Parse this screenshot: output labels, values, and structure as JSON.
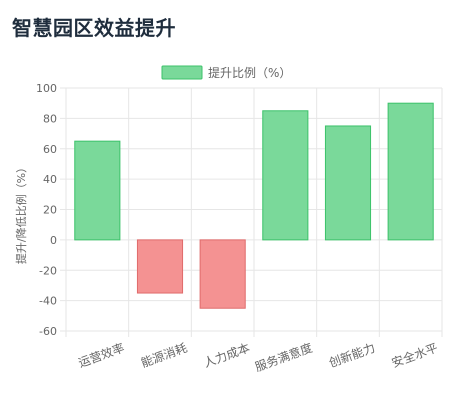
{
  "page": {
    "title": "智慧园区效益提升"
  },
  "colors": {
    "positive_fill": "#7ad99a",
    "positive_stroke": "#3cc26a",
    "negative_fill": "#f49292",
    "negative_stroke": "#e06b6b",
    "grid": "#e6e6e6",
    "axis_text": "#666666",
    "title_text": "#1f2d3d"
  },
  "chart_data": {
    "type": "bar",
    "categories": [
      "运营效率",
      "能源消耗",
      "人力成本",
      "服务满意度",
      "创新能力",
      "安全水平"
    ],
    "series": [
      {
        "name": "提升比例（%）",
        "values": [
          65,
          -35,
          -45,
          85,
          75,
          90
        ]
      }
    ],
    "xlabel": "",
    "ylabel": "提升/降低比例（%）",
    "ylim": [
      -60,
      100
    ],
    "yticks": [
      100,
      80,
      60,
      40,
      20,
      0,
      -20,
      -40,
      -60
    ],
    "grid": true,
    "legend_position": "top-center"
  }
}
